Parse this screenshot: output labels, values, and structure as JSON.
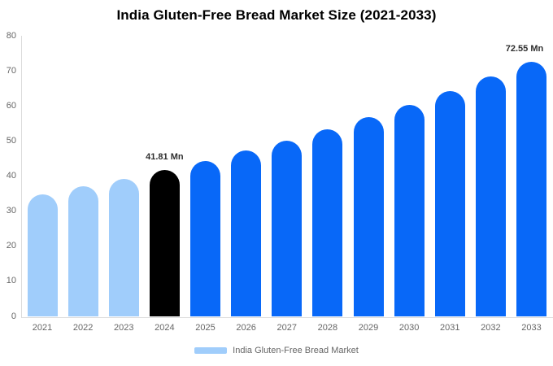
{
  "title": "India Gluten-Free Bread Market Size (2021-2033)",
  "legend": {
    "label": "India Gluten-Free Bread Market"
  },
  "chart_data": {
    "type": "bar",
    "title": "India Gluten-Free Bread Market Size (2021-2033)",
    "categories": [
      "2021",
      "2022",
      "2023",
      "2024",
      "2025",
      "2026",
      "2027",
      "2028",
      "2029",
      "2030",
      "2031",
      "2032",
      "2033"
    ],
    "values": [
      34.8,
      37.0,
      39.3,
      41.81,
      44.4,
      47.3,
      50.2,
      53.4,
      56.8,
      60.4,
      64.2,
      68.3,
      72.55
    ],
    "value_unit": "Mn",
    "xlabel": "",
    "ylabel": "",
    "ylim": [
      0,
      80
    ],
    "yticks": [
      0,
      10,
      20,
      30,
      40,
      50,
      60,
      70,
      80
    ],
    "grid": false,
    "legend_position": "bottom",
    "legend_entries": [
      {
        "label": "India Gluten-Free Bread Market",
        "color": "#a0cdfb"
      }
    ],
    "point_colors": [
      "#a0cdfb",
      "#a0cdfb",
      "#a0cdfb",
      "#000000",
      "#0868f8",
      "#0868f8",
      "#0868f8",
      "#0868f8",
      "#0868f8",
      "#0868f8",
      "#0868f8",
      "#0868f8",
      "#0868f8"
    ],
    "annotations": [
      {
        "category": "2024",
        "label": "41.81 Mn"
      },
      {
        "category": "2033",
        "label": "72.55 Mn"
      }
    ],
    "colors": {
      "historical_bar": "#a0cdfb",
      "base_year_bar": "#000000",
      "forecast_bar": "#0868f8",
      "axis_line": "#dcdcdc",
      "tick_label": "#666666",
      "value_label": "#2e2e2e",
      "title": "#000000"
    }
  }
}
